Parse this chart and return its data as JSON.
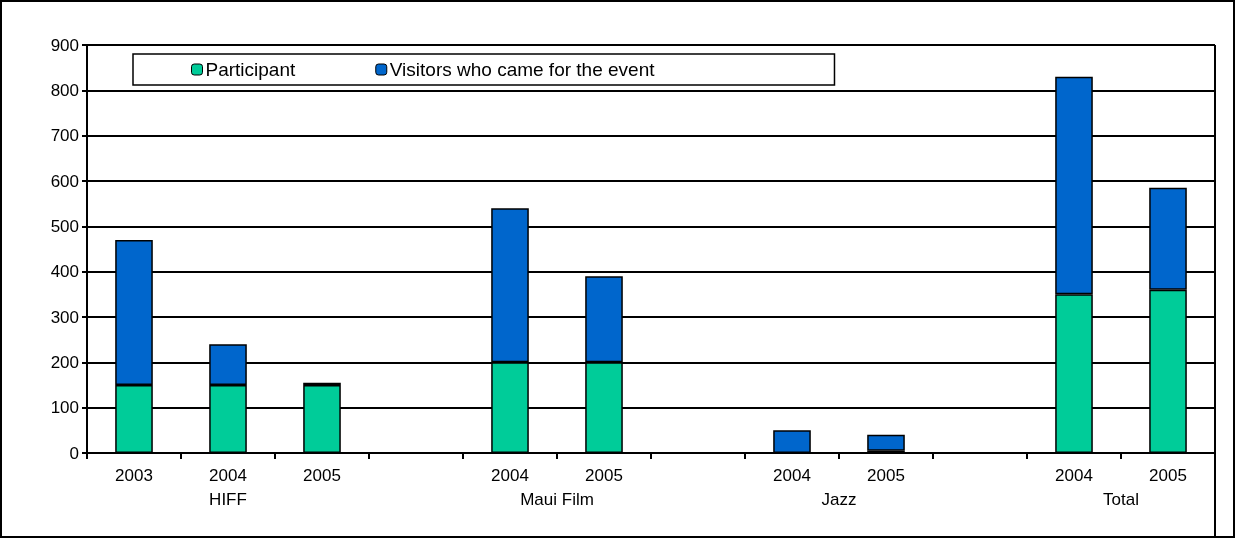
{
  "chart_data": {
    "type": "bar",
    "stacked": true,
    "categories": [
      "2003",
      "2004",
      "2005",
      null,
      "2004",
      "2005",
      null,
      "2004",
      "2005",
      null,
      "2004",
      "2005"
    ],
    "series": [
      {
        "name": "Participant",
        "color": "#00cc99",
        "values": [
          150,
          150,
          150,
          null,
          200,
          200,
          null,
          0,
          5,
          null,
          350,
          360
        ]
      },
      {
        "name": "Visitors who came for the event",
        "color": "#0066cc",
        "values": [
          320,
          90,
          5,
          null,
          340,
          190,
          null,
          50,
          35,
          null,
          480,
          225
        ]
      }
    ],
    "annotations": [
      "HIFF",
      "Maui Film",
      "Jazz",
      "Total"
    ],
    "ylim": [
      0,
      900
    ],
    "yticks": [
      0,
      100,
      200,
      300,
      400,
      500,
      600,
      700,
      800,
      900
    ],
    "grid": "y",
    "legend": "top left"
  }
}
